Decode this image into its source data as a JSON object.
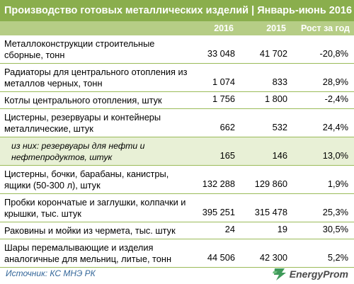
{
  "title": "Производство готовых металлических изделий | Январь-июнь 2016",
  "columns": [
    "2016",
    "2015",
    "Рост за год"
  ],
  "rows": [
    {
      "label": "Металлоконструкции строительные сборные, тонн",
      "v2016": "33 048",
      "v2015": "41 702",
      "growth": "-20,8%",
      "sub": false,
      "lines": 2
    },
    {
      "label": "Радиаторы для центрального отопления из металлов черных, тонн",
      "v2016": "1 074",
      "v2015": "833",
      "growth": "28,9%",
      "sub": false,
      "lines": 2
    },
    {
      "label": "Котлы центрального отопления, штук",
      "v2016": "1 756",
      "v2015": "1 800",
      "growth": "-2,4%",
      "sub": false,
      "lines": 1
    },
    {
      "label": "Цистерны, резервуары и контейнеры металлические, штук",
      "v2016": "662",
      "v2015": "532",
      "growth": "24,4%",
      "sub": false,
      "lines": 2
    },
    {
      "label": "из них: резервуары для нефти и нефтепродуктов, штук",
      "v2016": "165",
      "v2015": "146",
      "growth": "13,0%",
      "sub": true,
      "lines": 2
    },
    {
      "label": "Цистерны, бочки, барабаны, канистры, ящики (50-300 л), штук",
      "v2016": "132 288",
      "v2015": "129 860",
      "growth": "1,9%",
      "sub": false,
      "lines": 2
    },
    {
      "label": "Пробки корончатые и заглушки, колпачки и крышки, тыс. штук",
      "v2016": "395 251",
      "v2015": "315 478",
      "growth": "25,3%",
      "sub": false,
      "lines": 2
    },
    {
      "label": "Раковины и мойки из чермета, тыс. штук",
      "v2016": "24",
      "v2015": "19",
      "growth": "30,5%",
      "sub": false,
      "lines": 1
    },
    {
      "label": "Шары перемалывающие и изделия аналогичные для мельниц, литые, тонн",
      "v2016": "44 506",
      "v2015": "42 300",
      "growth": "5,2%",
      "sub": false,
      "lines": 2
    }
  ],
  "source": "Источник: КС МНЭ РК",
  "brand": {
    "name": "EnergyProm",
    "icon": "energyprom-logo-icon",
    "color": "#3f9a5a"
  },
  "colors": {
    "title_bg": "#8aae4d",
    "header_bg": "#b6cd86",
    "sub_row_bg": "#e8f0d6",
    "border": "#9bbb59",
    "source": "#336699"
  },
  "chart_data": {
    "type": "table",
    "title": "Производство готовых металлических изделий | Январь-июнь 2016",
    "columns": [
      "",
      "2016",
      "2015",
      "Рост за год"
    ],
    "rows": [
      [
        "Металлоконструкции строительные сборные, тонн",
        33048,
        41702,
        -20.8
      ],
      [
        "Радиаторы для центрального отопления из металлов черных, тонн",
        1074,
        833,
        28.9
      ],
      [
        "Котлы центрального отопления, штук",
        1756,
        1800,
        -2.4
      ],
      [
        "Цистерны, резервуары и контейнеры металлические, штук",
        662,
        532,
        24.4
      ],
      [
        "из них: резервуары для нефти и нефтепродуктов, штук",
        165,
        146,
        13.0
      ],
      [
        "Цистерны, бочки, барабаны, канистры, ящики (50-300 л), штук",
        132288,
        129860,
        1.9
      ],
      [
        "Пробки корончатые и заглушки, колпачки и крышки, тыс. штук",
        395251,
        315478,
        25.3
      ],
      [
        "Раковины и мойки из чермета, тыс. штук",
        24,
        19,
        30.5
      ],
      [
        "Шары перемалывающие и изделия аналогичные для мельниц, литые, тонн",
        44506,
        42300,
        5.2
      ]
    ]
  }
}
